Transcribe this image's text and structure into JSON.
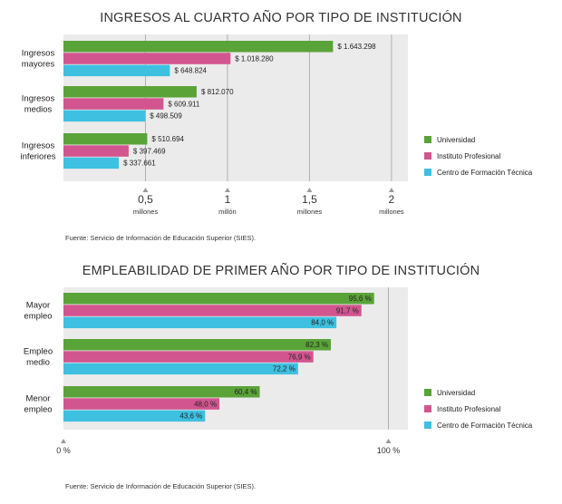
{
  "colors": {
    "universidad": "#5aa338",
    "instituto": "#d2558f",
    "cft": "#3ec0e0",
    "panel": "#ebebeb",
    "gridline": "#b0b0b0"
  },
  "chart_data": [
    {
      "type": "bar",
      "orientation": "horizontal",
      "title": "INGRESOS AL CUARTO AÑO POR TIPO DE INSTITUCIÓN",
      "source": "Fuente: Servicio de Información de Educación Superior (SIES).",
      "categories": [
        {
          "label": [
            "Ingresos",
            "mayores"
          ]
        },
        {
          "label": [
            "Ingresos",
            "medios"
          ]
        },
        {
          "label": [
            "Ingresos",
            "inferiores"
          ]
        }
      ],
      "series": [
        {
          "name": "Universidad",
          "values": [
            1643298,
            812070,
            510694
          ],
          "labels": [
            "$ 1.643.298",
            "$ 812.070",
            "$ 510.694"
          ]
        },
        {
          "name": "Instituto Profesional",
          "values": [
            1018280,
            609911,
            397469
          ],
          "labels": [
            "$ 1.018.280",
            "$ 609.911",
            "$ 397.469"
          ]
        },
        {
          "name": "Centro de Formación Técnica",
          "values": [
            648824,
            498509,
            337661
          ],
          "labels": [
            "$ 648.824",
            "$ 498.509",
            "$ 337.661"
          ]
        }
      ],
      "xlim": [
        0,
        2100000
      ],
      "ticks": [
        {
          "value": 500000,
          "label": [
            "0,5",
            "millones"
          ]
        },
        {
          "value": 1000000,
          "label": [
            "1",
            "millón"
          ]
        },
        {
          "value": 1500000,
          "label": [
            "1,5",
            "millones"
          ]
        },
        {
          "value": 2000000,
          "label": [
            "2",
            "millones"
          ]
        }
      ],
      "legend_position": "right"
    },
    {
      "type": "bar",
      "orientation": "horizontal",
      "title": "EMPLEABILIDAD DE PRIMER AÑO POR TIPO DE INSTITUCIÓN",
      "source": "Fuente: Servicio de Información de Educación Superior (SIES).",
      "categories": [
        {
          "label": [
            "Mayor",
            "empleo"
          ]
        },
        {
          "label": [
            "Empleo",
            "medio"
          ]
        },
        {
          "label": [
            "Menor",
            "empleo"
          ]
        }
      ],
      "series": [
        {
          "name": "Universidad",
          "values": [
            95.6,
            82.3,
            60.4
          ],
          "labels": [
            "95,6 %",
            "82,3 %",
            "60,4 %"
          ]
        },
        {
          "name": "Instituto Profesional",
          "values": [
            91.7,
            76.9,
            48.0
          ],
          "labels": [
            "91,7 %",
            "76,9 %",
            "48,0 %"
          ]
        },
        {
          "name": "Centro de Formación Técnica",
          "values": [
            84.0,
            72.2,
            43.6
          ],
          "labels": [
            "84,0 %",
            "72,2 %",
            "43,6 %"
          ]
        }
      ],
      "xlim": [
        0,
        106
      ],
      "ticks": [
        {
          "value": 0,
          "label": [
            "0 %"
          ]
        },
        {
          "value": 100,
          "label": [
            "100 %"
          ]
        }
      ],
      "legend_position": "right"
    }
  ]
}
